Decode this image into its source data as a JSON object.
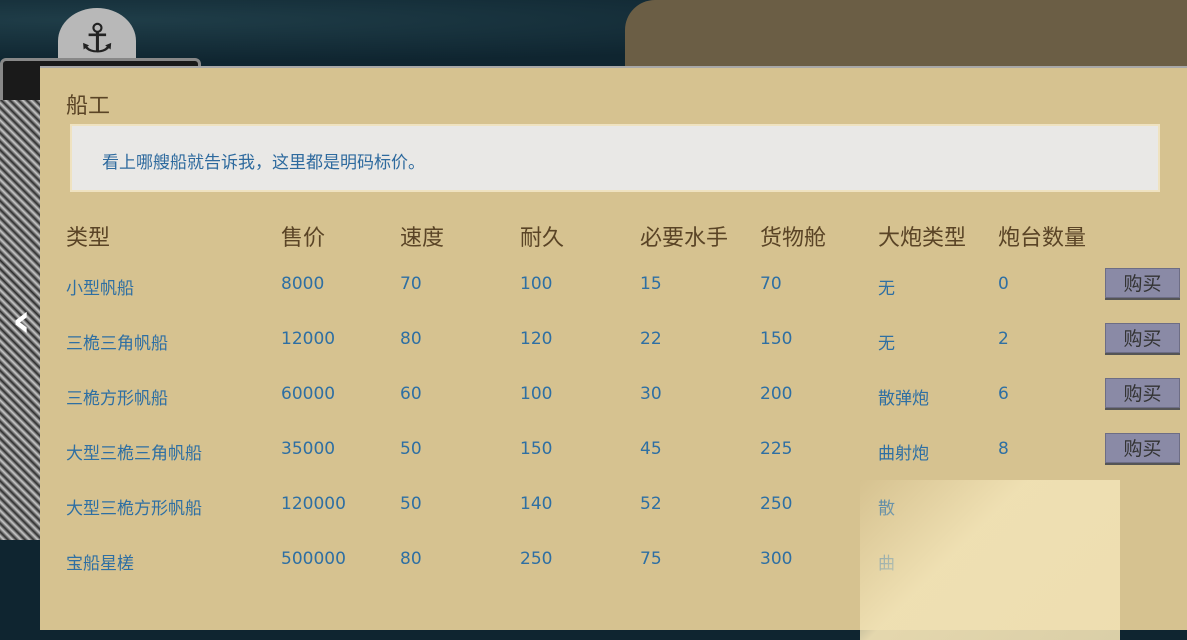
{
  "dialog": {
    "title": "船工",
    "message": "看上哪艘船就告诉我，这里都是明码标价。"
  },
  "icons": {
    "anchor": "anchor-icon",
    "prev": "chevron-left-icon"
  },
  "columns": [
    "类型",
    "售价",
    "速度",
    "耐久",
    "必要水手",
    "货物舱",
    "大炮类型",
    "炮台数量"
  ],
  "buy_label": "购买",
  "rows": [
    {
      "type": "小型帆船",
      "price": "8000",
      "speed": "70",
      "durability": "100",
      "crew": "15",
      "cargo": "70",
      "cannon": "无",
      "guns": "0",
      "buy": true
    },
    {
      "type": "三桅三角帆船",
      "price": "12000",
      "speed": "80",
      "durability": "120",
      "crew": "22",
      "cargo": "150",
      "cannon": "无",
      "guns": "2",
      "buy": true
    },
    {
      "type": "三桅方形帆船",
      "price": "60000",
      "speed": "60",
      "durability": "100",
      "crew": "30",
      "cargo": "200",
      "cannon": "散弹炮",
      "guns": "6",
      "buy": true
    },
    {
      "type": "大型三桅三角帆船",
      "price": "35000",
      "speed": "50",
      "durability": "150",
      "crew": "45",
      "cargo": "225",
      "cannon": "曲射炮",
      "guns": "8",
      "buy": true
    },
    {
      "type": "大型三桅方形帆船",
      "price": "120000",
      "speed": "50",
      "durability": "140",
      "crew": "52",
      "cargo": "250",
      "cannon": "散",
      "guns": "",
      "buy": false,
      "cannon_partially_obscured": true
    },
    {
      "type": "宝船星槎",
      "price": "500000",
      "speed": "80",
      "durability": "250",
      "crew": "75",
      "cargo": "300",
      "cannon": "曲",
      "guns": "",
      "buy": false,
      "cannon_partially_obscured": true
    }
  ]
}
